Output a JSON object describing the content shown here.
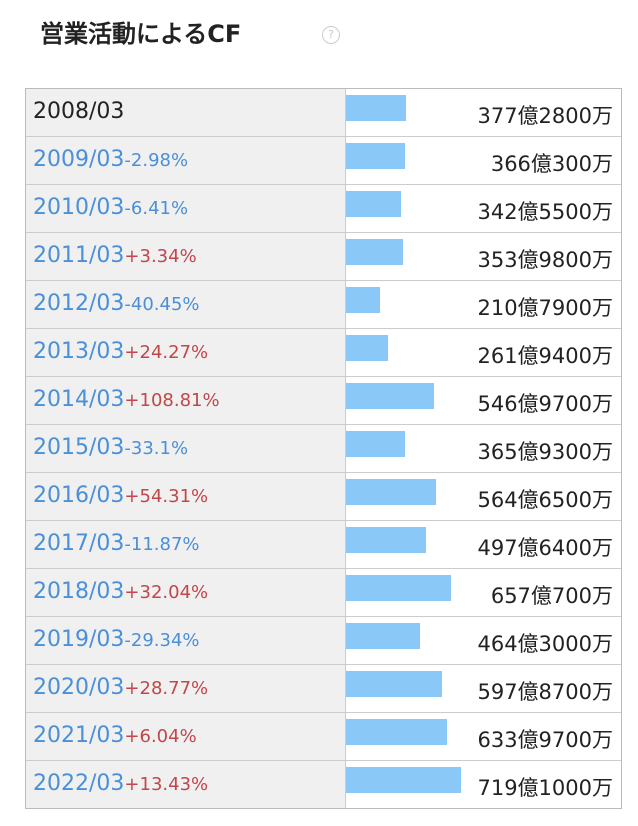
{
  "chart_data": {
    "type": "bar",
    "title": "営業活動によるCF",
    "categories": [
      "2008/03",
      "2009/03",
      "2010/03",
      "2011/03",
      "2012/03",
      "2013/03",
      "2014/03",
      "2015/03",
      "2016/03",
      "2017/03",
      "2018/03",
      "2019/03",
      "2020/03",
      "2021/03",
      "2022/03"
    ],
    "changes": [
      null,
      "-2.98%",
      "-6.41%",
      "+3.34%",
      "-40.45%",
      "+24.27%",
      "+108.81%",
      "-33.1%",
      "+54.31%",
      "-11.87%",
      "+32.04%",
      "-29.34%",
      "+28.77%",
      "+6.04%",
      "+13.43%"
    ],
    "values": [
      377.28,
      366.03,
      342.55,
      353.98,
      210.79,
      261.94,
      546.97,
      365.93,
      564.65,
      497.64,
      657.07,
      464.3,
      597.87,
      633.97,
      719.1
    ],
    "value_labels": [
      "377億2800万",
      "366億300万",
      "342億5500万",
      "353億9800万",
      "210億7900万",
      "261億9400万",
      "546億9700万",
      "365億9300万",
      "564億6500万",
      "497億6400万",
      "657億700万",
      "464億3000万",
      "597億8700万",
      "633億9700万",
      "719億1000万"
    ],
    "color": "#8ac8f8"
  }
}
